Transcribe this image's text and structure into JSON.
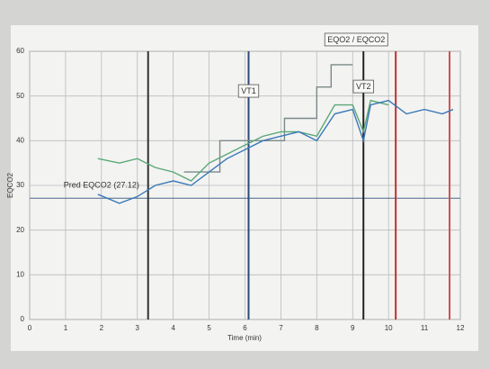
{
  "chart_data": {
    "type": "line",
    "y_label": "EQCO2",
    "x_label": "Time (min)",
    "xlim": [
      0,
      12
    ],
    "xticks": [
      0,
      1,
      2,
      3,
      4,
      5,
      6,
      7,
      8,
      9,
      10,
      11,
      12
    ],
    "ylim": [
      0,
      60
    ],
    "yticks": [
      0,
      10,
      20,
      30,
      40,
      50,
      60
    ],
    "grid": true,
    "series": [
      {
        "color": "#7a8a8a",
        "x": [
          4.3,
          5.3,
          5.3,
          7.1,
          7.1,
          8.0,
          8.0,
          8.4,
          8.4,
          9.0
        ],
        "values": [
          33,
          33,
          40,
          40,
          45,
          45,
          52,
          52,
          57,
          57
        ]
      },
      {
        "color": "#5aa878",
        "x": [
          1.9,
          2.5,
          3,
          3.5,
          4,
          4.5,
          5,
          5.5,
          6,
          6.5,
          7,
          7.5,
          8,
          8.5,
          9,
          9.3,
          9.5,
          10
        ],
        "values": [
          36,
          35,
          36,
          34,
          33,
          31,
          35,
          37,
          39,
          41,
          42,
          42,
          41,
          48,
          48,
          42,
          49,
          48
        ]
      },
      {
        "color": "#3a78b8",
        "x": [
          1.9,
          2.5,
          3,
          3.5,
          4,
          4.5,
          5,
          5.5,
          6,
          6.5,
          7,
          7.5,
          8,
          8.5,
          9,
          9.3,
          9.5,
          10,
          10.5,
          11,
          11.5,
          11.8
        ],
        "values": [
          28,
          26,
          27.5,
          30,
          31,
          30,
          33,
          36,
          38,
          40,
          41,
          42,
          40,
          46,
          47,
          40,
          48,
          49,
          46,
          47,
          46,
          47
        ]
      }
    ],
    "vlines": [
      {
        "x": 3.3,
        "color": "#333333"
      },
      {
        "x": 6.1,
        "color": "#2a4a7a"
      },
      {
        "x": 9.3,
        "color": "#222222"
      },
      {
        "x": 10.2,
        "color": "#c03030"
      },
      {
        "x": 11.7,
        "color": "#d05050"
      }
    ],
    "hlines": [
      {
        "y": 27.12,
        "color": "#4a6a8a"
      }
    ],
    "annotations": [
      {
        "text": "Pred EQCO2 (27.12)",
        "x": 2.0,
        "y": 30,
        "box": false
      },
      {
        "text": "VT1",
        "x": 6.1,
        "y": 51,
        "box": true
      },
      {
        "text": "VT2",
        "x": 9.3,
        "y": 52,
        "box": true
      },
      {
        "text": "EQO2 / EQCO2",
        "x": 9.1,
        "y": 62.5,
        "box": true
      }
    ]
  }
}
